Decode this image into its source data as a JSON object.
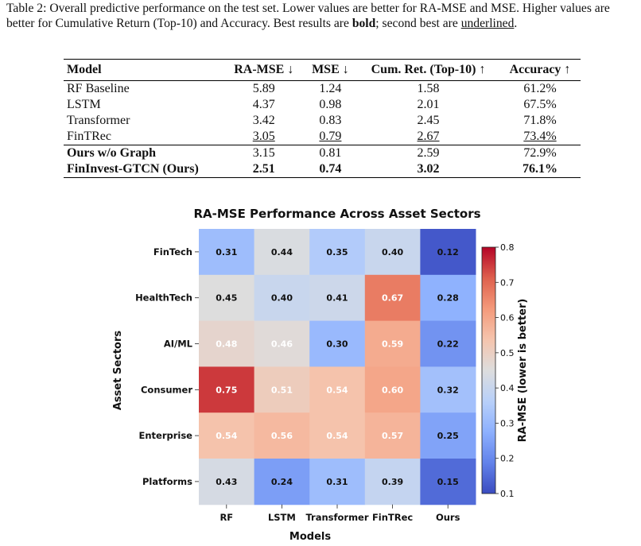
{
  "caption": {
    "label": "Table 2:",
    "text_before_bold": " Overall predictive performance on the test set. Lower values are better for RA-MSE and MSE. Higher values are better for Cumulative Return (Top-10) and Accuracy. Best results are ",
    "bold_word": "bold",
    "text_mid": "; second best are ",
    "underlined_word": "underlined",
    "text_end": "."
  },
  "table": {
    "headers": [
      "Model",
      "RA-MSE ↓",
      "MSE ↓",
      "Cum. Ret. (Top-10) ↑",
      "Accuracy ↑"
    ],
    "rows": [
      {
        "model": "RF Baseline",
        "ra_mse": "5.89",
        "mse": "1.24",
        "cum_ret": "1.58",
        "accuracy": "61.2%"
      },
      {
        "model": "LSTM",
        "ra_mse": "4.37",
        "mse": "0.98",
        "cum_ret": "2.01",
        "accuracy": "67.5%"
      },
      {
        "model": "Transformer",
        "ra_mse": "3.42",
        "mse": "0.83",
        "cum_ret": "2.45",
        "accuracy": "71.8%"
      },
      {
        "model": "FinTRec",
        "ra_mse": "3.05",
        "mse": "0.79",
        "cum_ret": "2.67",
        "accuracy": "73.4%"
      },
      {
        "model": "Ours w/o Graph",
        "ra_mse": "3.15",
        "mse": "0.81",
        "cum_ret": "2.59",
        "accuracy": "72.9%"
      },
      {
        "model": "FinInvest-GTCN (Ours)",
        "ra_mse": "2.51",
        "mse": "0.74",
        "cum_ret": "3.02",
        "accuracy": "76.1%"
      }
    ]
  },
  "chart_data": {
    "type": "heatmap",
    "title": "RA-MSE Performance Across Asset Sectors",
    "xlabel": "Models",
    "ylabel": "Asset Sectors",
    "x_categories": [
      "RF",
      "LSTM",
      "Transformer",
      "FinTRec",
      "Ours"
    ],
    "y_categories": [
      "FinTech",
      "HealthTech",
      "AI/ML",
      "Consumer",
      "Enterprise",
      "Platforms"
    ],
    "values": [
      [
        0.31,
        0.44,
        0.35,
        0.4,
        0.12
      ],
      [
        0.45,
        0.4,
        0.41,
        0.67,
        0.28
      ],
      [
        0.48,
        0.46,
        0.3,
        0.59,
        0.22
      ],
      [
        0.75,
        0.51,
        0.54,
        0.6,
        0.32
      ],
      [
        0.54,
        0.56,
        0.54,
        0.57,
        0.25
      ],
      [
        0.43,
        0.24,
        0.31,
        0.39,
        0.15
      ]
    ],
    "colorbar": {
      "label": "RA-MSE (lower is better)",
      "range": [
        0.1,
        0.8
      ],
      "ticks": [
        "0.1",
        "0.2",
        "0.3",
        "0.4",
        "0.5",
        "0.6",
        "0.7",
        "0.8"
      ],
      "colormap": "coolwarm"
    }
  }
}
